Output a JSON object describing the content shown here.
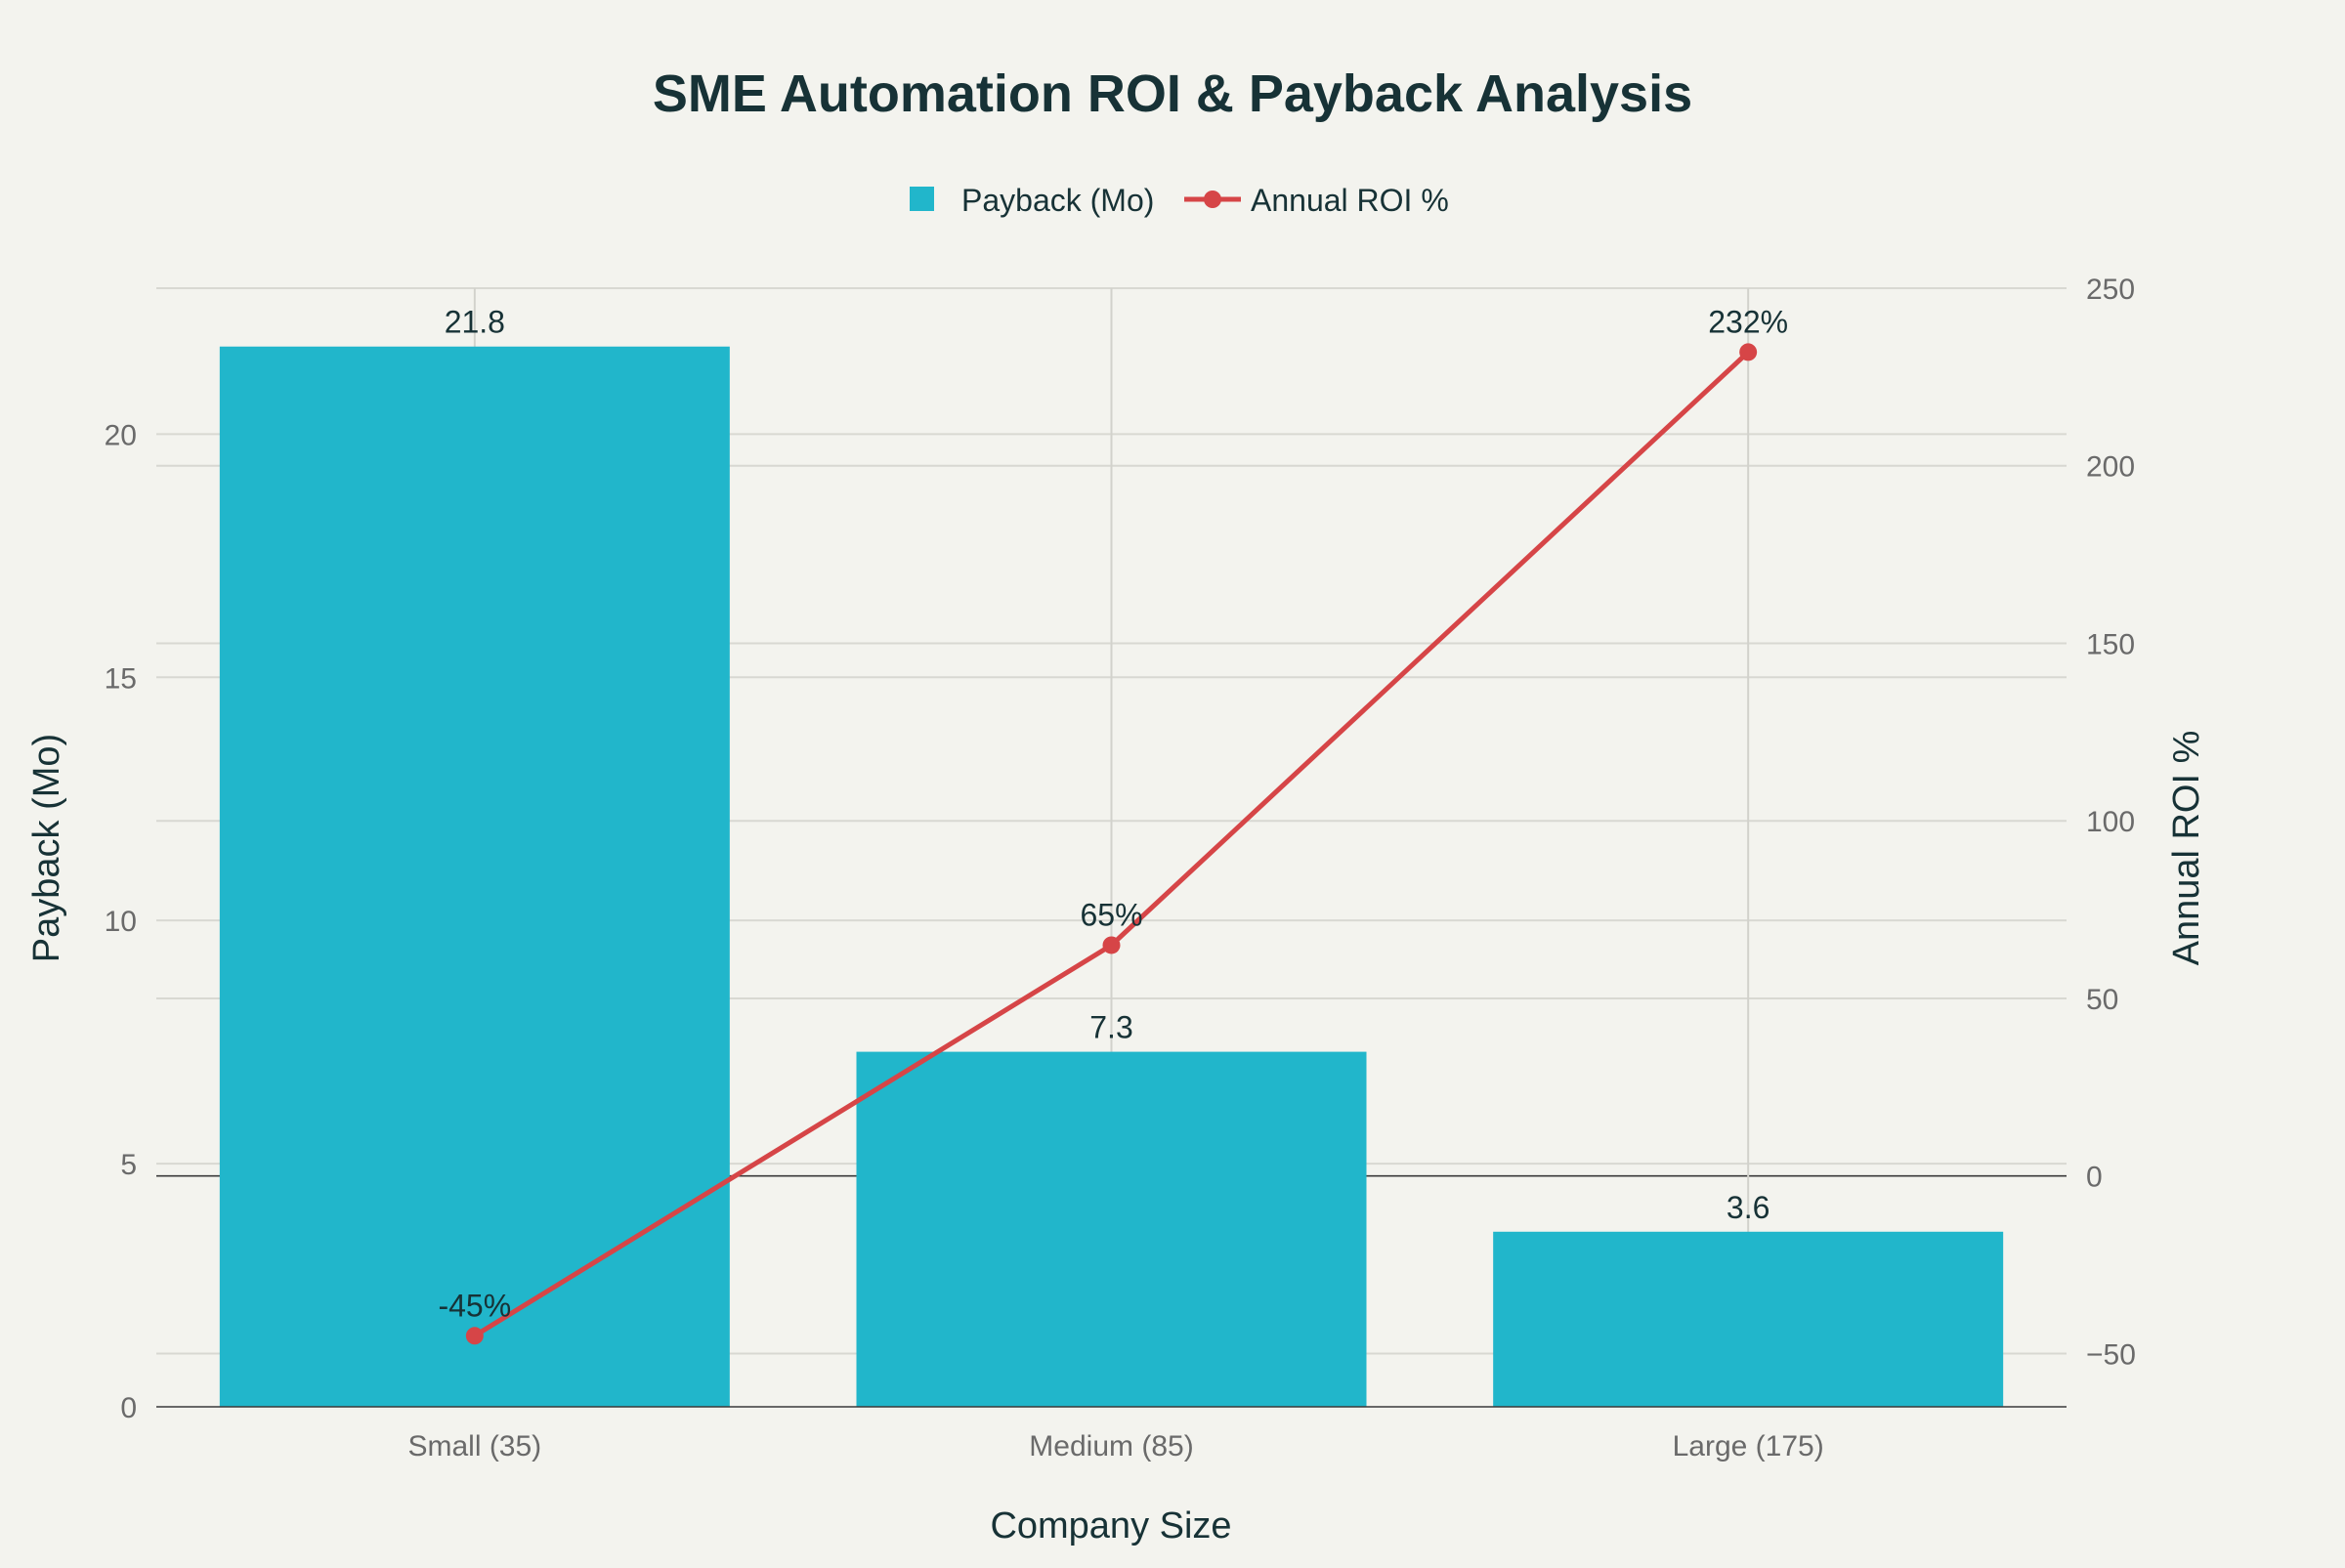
{
  "chart_data": {
    "type": "bar",
    "title": "SME Automation ROI & Payback Analysis",
    "xlabel": "Company Size",
    "ylabel": "Payback (Mo)",
    "y2label": "Annual ROI %",
    "categories": [
      "Small (35)",
      "Medium (85)",
      "Large (175)"
    ],
    "series": [
      {
        "name": "Payback (Mo)",
        "type": "bar",
        "axis": "left",
        "color": "#21b6cb",
        "values": [
          21.8,
          7.3,
          3.6
        ],
        "labels": [
          "21.8",
          "7.3",
          "3.6"
        ]
      },
      {
        "name": "Annual ROI %",
        "type": "line",
        "axis": "right",
        "color": "#d64547",
        "values": [
          -45,
          65,
          232
        ],
        "labels": [
          "-45%",
          "65%",
          "232%"
        ]
      }
    ],
    "ylim": [
      0,
      23
    ],
    "yticks": [
      0,
      5,
      10,
      15,
      20
    ],
    "y2lim": [
      -65,
      250
    ],
    "y2ticks": [
      -50,
      0,
      50,
      100,
      150,
      200,
      250
    ],
    "legend_position": "top-center",
    "grid": true
  }
}
